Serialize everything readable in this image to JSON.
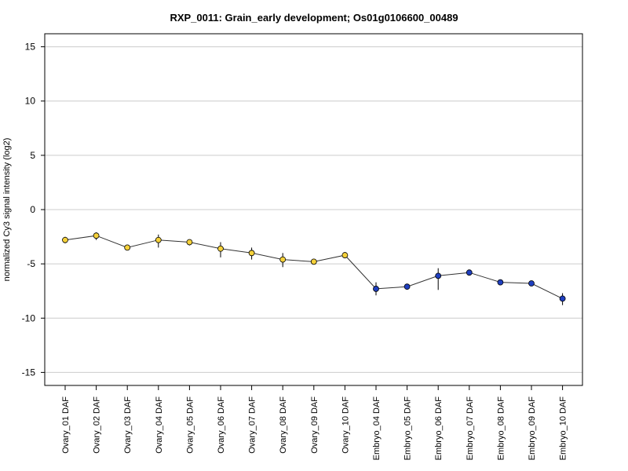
{
  "chart_data": {
    "type": "line",
    "title": "RXP_0011: Grain_early development; Os01g0106600_00489",
    "xlabel": "",
    "ylabel": "normalized Cy3 signal intensity (log2)",
    "ylim": [
      -16.2,
      16.2
    ],
    "yticks": [
      15,
      10,
      5,
      0,
      -5,
      -10,
      -15
    ],
    "ytick_labels": [
      "15",
      "10",
      "5",
      "0",
      "-5",
      "-10",
      "-15"
    ],
    "grid": "horizontal",
    "categories": [
      "Ovary_01 DAF",
      "Ovary_02 DAF",
      "Ovary_03 DAF",
      "Ovary_04 DAF",
      "Ovary_05 DAF",
      "Ovary_06 DAF",
      "Ovary_07 DAF",
      "Ovary_08 DAF",
      "Ovary_09 DAF",
      "Ovary_10 DAF",
      "Embryo_04 DAF",
      "Embryo_05 DAF",
      "Embryo_06 DAF",
      "Embryo_07 DAF",
      "Embryo_08 DAF",
      "Embryo_09 DAF",
      "Embryo_10 DAF"
    ],
    "values": [
      -2.8,
      -2.4,
      -3.5,
      -2.8,
      -3.0,
      -3.6,
      -4.0,
      -4.6,
      -4.8,
      -4.2,
      -7.3,
      -7.1,
      -6.1,
      -5.8,
      -6.7,
      -6.8,
      -8.2
    ],
    "error_low": [
      -3.1,
      -2.8,
      -3.7,
      -3.5,
      -3.3,
      -4.4,
      -4.6,
      -5.3,
      -5.0,
      -4.4,
      -7.9,
      -7.3,
      -7.4,
      -6.0,
      -6.9,
      -7.0,
      -8.8
    ],
    "error_high": [
      -2.5,
      -2.1,
      -3.3,
      -2.3,
      -2.8,
      -3.0,
      -3.5,
      -4.0,
      -4.6,
      -4.0,
      -6.7,
      -6.9,
      -5.4,
      -5.6,
      -6.5,
      -6.6,
      -7.7
    ],
    "marker_colors": [
      "#f5d13a",
      "#f5d13a",
      "#f5d13a",
      "#f5d13a",
      "#f5d13a",
      "#f5d13a",
      "#f5d13a",
      "#f5d13a",
      "#f5d13a",
      "#f5d13a",
      "#1f3fbf",
      "#1f3fbf",
      "#1f3fbf",
      "#1f3fbf",
      "#1f3fbf",
      "#1f3fbf",
      "#1f3fbf"
    ],
    "line_color": "#333333",
    "grid_color": "#cccccc"
  }
}
